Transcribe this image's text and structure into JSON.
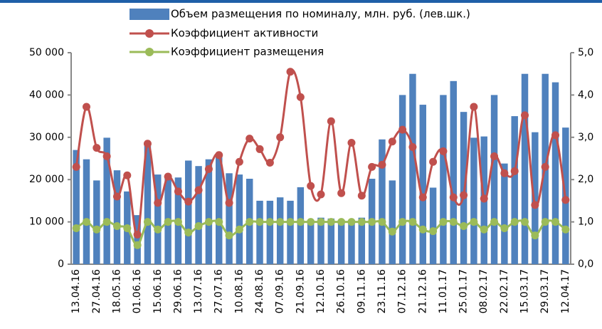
{
  "chart_data": {
    "type": "bar_line",
    "categories": [
      "13.04.16",
      null,
      "27.04.16",
      null,
      "18.05.16",
      null,
      "01.06.16",
      null,
      "15.06.16",
      null,
      "29.06.16",
      null,
      "13.07.16",
      null,
      "27.07.16",
      null,
      "10.08.16",
      null,
      "24.08.16",
      null,
      "07.09.16",
      null,
      "21.09.16",
      null,
      "12.10.16",
      null,
      "26.10.16",
      null,
      "09.11.16",
      null,
      "23.11.16",
      null,
      "07.12.16",
      null,
      "21.12.16",
      null,
      "11.01.17",
      null,
      "25.01.17",
      null,
      "08.02.17",
      null,
      "22.02.17",
      null,
      "15.03.17",
      null,
      "29.03.17",
      null,
      "12.04.17"
    ],
    "series": [
      {
        "name": "Объем размещения по номиналу, млн. руб. (лев.шк.)",
        "color": "#4f81bd",
        "kind": "bar",
        "values": [
          27000,
          24800,
          19800,
          29900,
          22200,
          17200,
          11600,
          28000,
          21200,
          21000,
          20500,
          24500,
          23200,
          24800,
          25500,
          21500,
          21200,
          20200,
          15000,
          15000,
          15800,
          15000,
          18200,
          10500,
          11000,
          10800,
          10500,
          10300,
          11000,
          20200,
          29500,
          19800,
          40000,
          45000,
          37700,
          18100,
          40000,
          43300,
          36000,
          29900,
          30200,
          40000,
          23800,
          35000,
          45000,
          31200,
          45000,
          43000,
          32300
        ]
      },
      {
        "name": "Коэффициент активности",
        "color": "#c0504d",
        "kind": "line",
        "axis": "y2",
        "values": [
          2.3,
          3.72,
          2.75,
          2.55,
          1.6,
          2.1,
          0.7,
          2.85,
          1.45,
          2.07,
          1.72,
          1.48,
          1.75,
          2.25,
          2.58,
          1.45,
          2.42,
          2.97,
          2.72,
          2.4,
          3.0,
          4.55,
          3.95,
          1.85,
          1.65,
          3.38,
          1.68,
          2.87,
          1.62,
          2.3,
          2.35,
          2.9,
          3.18,
          2.77,
          1.58,
          2.42,
          2.67,
          1.58,
          1.63,
          3.72,
          1.55,
          2.55,
          2.15,
          2.2,
          3.52,
          1.4,
          2.3,
          3.05,
          1.52
        ]
      },
      {
        "name": "Коэффициент размещения",
        "color": "#9bbb59",
        "kind": "line",
        "axis": "y2",
        "values": [
          0.85,
          1.0,
          0.82,
          1.0,
          0.9,
          0.85,
          0.45,
          1.0,
          0.82,
          1.0,
          1.0,
          0.75,
          0.9,
          1.0,
          1.0,
          0.68,
          0.82,
          1.0,
          1.0,
          1.0,
          1.0,
          1.0,
          1.0,
          1.0,
          1.0,
          1.0,
          1.0,
          1.0,
          1.0,
          1.0,
          1.0,
          0.77,
          1.0,
          1.0,
          0.82,
          0.78,
          1.0,
          1.0,
          0.9,
          1.0,
          0.82,
          1.0,
          0.85,
          1.0,
          1.0,
          0.68,
          1.0,
          1.0,
          0.82
        ]
      }
    ],
    "ylim": [
      0,
      50000
    ],
    "yticks": [
      {
        "value": 0,
        "label": "0"
      },
      {
        "value": 10000,
        "label": "10 000"
      },
      {
        "value": 20000,
        "label": "20 000"
      },
      {
        "value": 30000,
        "label": "30 000"
      },
      {
        "value": 40000,
        "label": "40 000"
      },
      {
        "value": 50000,
        "label": "50 000"
      }
    ],
    "y2lim": [
      0,
      5
    ],
    "y2ticks": [
      {
        "value": 0,
        "label": "0,0"
      },
      {
        "value": 1,
        "label": "1,0"
      },
      {
        "value": 2,
        "label": "2,0"
      },
      {
        "value": 3,
        "label": "3,0"
      },
      {
        "value": 4,
        "label": "4,0"
      },
      {
        "value": 5,
        "label": "5,0"
      }
    ],
    "legend": "top"
  }
}
